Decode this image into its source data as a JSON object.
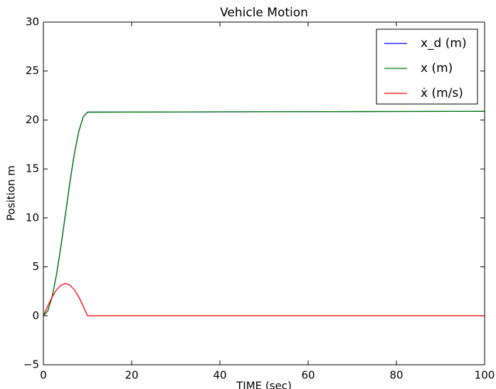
{
  "chart_data": {
    "type": "line",
    "title": "Vehicle Motion",
    "x_label": "TIME (sec)",
    "y_label": "Position m",
    "x": [
      0,
      1,
      2,
      3,
      4,
      5,
      6,
      7,
      8,
      9,
      10,
      20,
      40,
      60,
      80,
      100
    ],
    "series": [
      {
        "name": "x_d (m)",
        "color": "#0000ff",
        "values": [
          0,
          0.51,
          1.99,
          4.28,
          7.19,
          10.4,
          13.61,
          16.52,
          18.81,
          20.29,
          20.8,
          20.81,
          20.83,
          20.85,
          20.87,
          20.88
        ]
      },
      {
        "name": "x (m)",
        "color": "#008000",
        "values": [
          0,
          0.51,
          1.99,
          4.28,
          7.19,
          10.4,
          13.61,
          16.52,
          18.81,
          20.29,
          20.8,
          20.81,
          20.83,
          20.85,
          20.87,
          20.88
        ]
      },
      {
        "name": "ẋ (m/s)",
        "color": "#ff0000",
        "values": [
          0,
          1.02,
          1.94,
          2.67,
          3.14,
          3.3,
          3.14,
          2.67,
          1.94,
          1.02,
          0,
          0,
          0,
          0,
          0,
          0
        ]
      }
    ],
    "xlim": [
      0,
      100
    ],
    "xticks": [
      0,
      20,
      40,
      60,
      80,
      100
    ],
    "ylim": [
      -5,
      30
    ],
    "yticks": [
      {
        "value": -5,
        "label": "−5"
      },
      0,
      5,
      10,
      15,
      20,
      25,
      30
    ],
    "legend": "upper right",
    "grid": false
  }
}
